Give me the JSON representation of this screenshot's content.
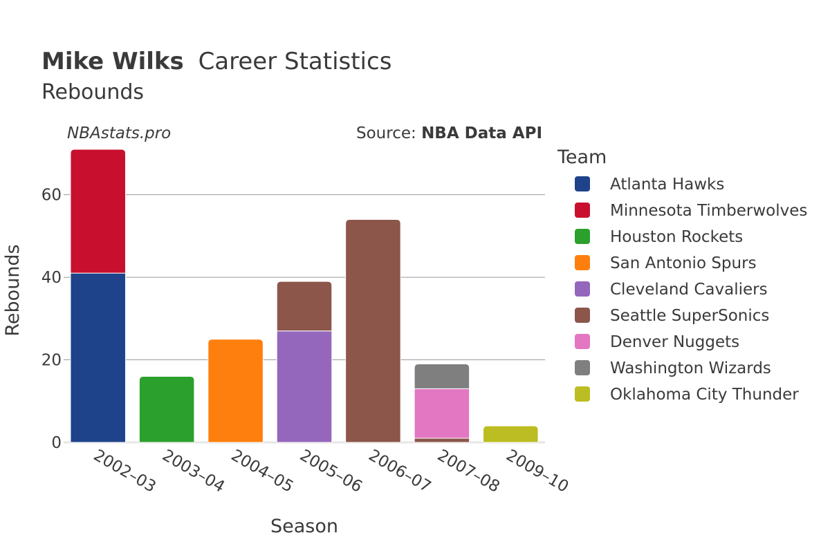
{
  "header": {
    "player_name": "Mike Wilks",
    "title_rest": "Career Statistics",
    "subtitle": "Rebounds",
    "site": "NBAstats.pro",
    "source_prefix": "Source: ",
    "source_name": "NBA Data API"
  },
  "chart_data": {
    "type": "bar",
    "stacked": true,
    "xlabel": "Season",
    "ylabel": "Rebounds",
    "ylim": [
      0,
      72
    ],
    "yticks": [
      0,
      20,
      40,
      60
    ],
    "grid": true,
    "categories": [
      "2002–03",
      "2003–04",
      "2004–05",
      "2005–06",
      "2006–07",
      "2007–08",
      "2009–10"
    ],
    "legend_title": "Team",
    "legend_position": "right",
    "series": [
      {
        "name": "Atlanta Hawks",
        "color": "#1f438a",
        "values": [
          41,
          0,
          0,
          0,
          0,
          0,
          0
        ]
      },
      {
        "name": "Minnesota Timberwolves",
        "color": "#c8102e",
        "values": [
          30,
          0,
          0,
          0,
          0,
          0,
          0
        ]
      },
      {
        "name": "Houston Rockets",
        "color": "#2ca02c",
        "values": [
          0,
          16,
          0,
          0,
          0,
          0,
          0
        ]
      },
      {
        "name": "San Antonio Spurs",
        "color": "#ff7f0e",
        "values": [
          0,
          0,
          25,
          0,
          0,
          0,
          0
        ]
      },
      {
        "name": "Cleveland Cavaliers",
        "color": "#9467bd",
        "values": [
          0,
          0,
          0,
          27,
          0,
          0,
          0
        ]
      },
      {
        "name": "Seattle SuperSonics",
        "color": "#8c564b",
        "values": [
          0,
          0,
          0,
          12,
          54,
          1,
          0
        ]
      },
      {
        "name": "Denver Nuggets",
        "color": "#e377c2",
        "values": [
          0,
          0,
          0,
          0,
          0,
          12,
          0
        ]
      },
      {
        "name": "Washington Wizards",
        "color": "#7f7f7f",
        "values": [
          0,
          0,
          0,
          0,
          0,
          6,
          0
        ]
      },
      {
        "name": "Oklahoma City Thunder",
        "color": "#bcbd22",
        "values": [
          0,
          0,
          0,
          0,
          0,
          0,
          4
        ]
      }
    ],
    "stack_order": [
      [
        "Atlanta Hawks",
        "Minnesota Timberwolves"
      ],
      [
        "Houston Rockets"
      ],
      [
        "San Antonio Spurs"
      ],
      [
        "Cleveland Cavaliers",
        "Seattle SuperSonics"
      ],
      [
        "Seattle SuperSonics"
      ],
      [
        "Seattle SuperSonics",
        "Denver Nuggets",
        "Washington Wizards"
      ],
      [
        "Oklahoma City Thunder"
      ]
    ]
  }
}
